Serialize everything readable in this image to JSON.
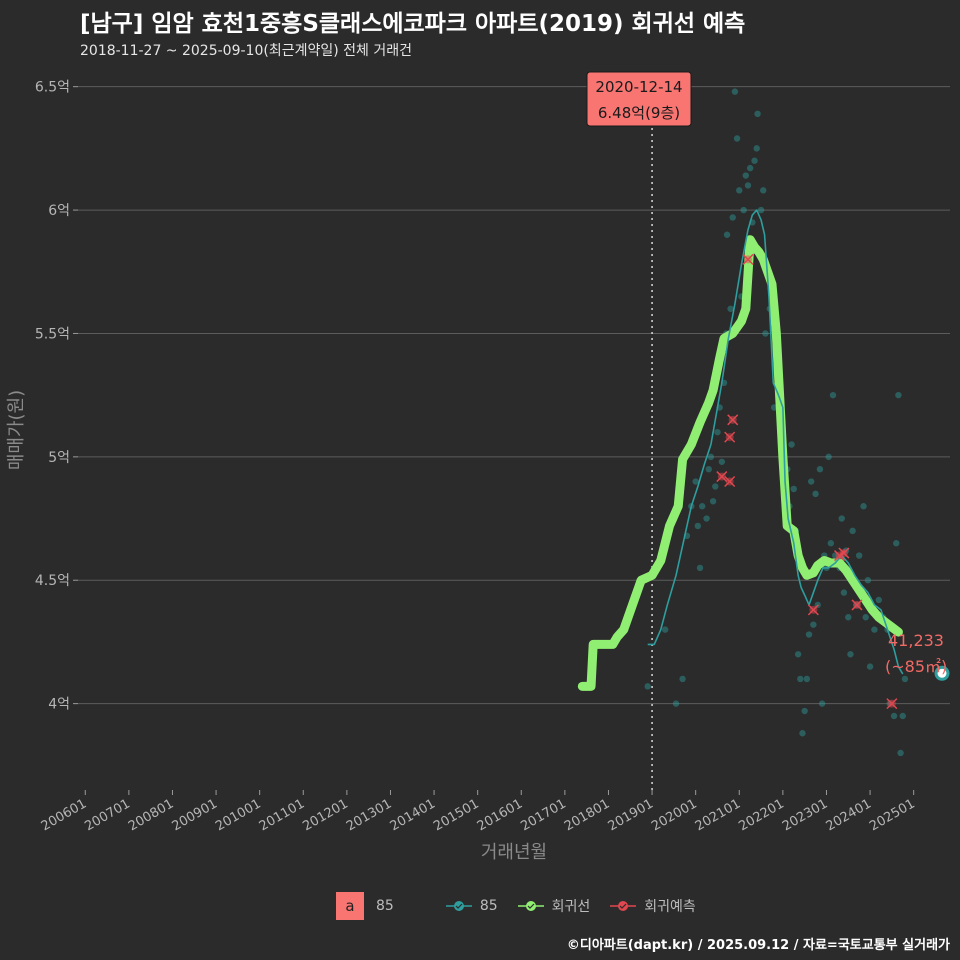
{
  "title": "[남구] 임암 효천1중흥S클래스에코파크 아파트(2019) 회귀선 예측",
  "subtitle": "2018-11-27 ~ 2025-09-10(최근계약일) 전체 거래건",
  "footer": "©디아파트(dapt.kr) / 2025.09.12 / 자료=국토교통부 실거래가",
  "colors": {
    "background": "#2b2b2b",
    "grid": "#5c5c5c",
    "area_line": "#2e9e9e",
    "regression": "#90ee72",
    "forecast": "#e0474f",
    "callout": "#f87572"
  },
  "chart_data": {
    "type": "line",
    "title": "[남구] 임암 효천1중흥S클래스에코파크 아파트(2019) 회귀선 예측",
    "xlabel": "거래년월",
    "ylabel": "매매가(원)",
    "x_range": [
      "2005-11",
      "2025-11"
    ],
    "ylim": [
      3.65,
      6.6
    ],
    "y_ticks": [
      {
        "value": 4.0,
        "label": "4억"
      },
      {
        "value": 4.5,
        "label": "4.5억"
      },
      {
        "value": 5.0,
        "label": "5억"
      },
      {
        "value": 5.5,
        "label": "5.5억"
      },
      {
        "value": 6.0,
        "label": "6억"
      },
      {
        "value": 6.5,
        "label": "6.5억"
      }
    ],
    "x_ticks": [
      "200601",
      "200701",
      "200801",
      "200901",
      "201001",
      "201101",
      "201201",
      "201301",
      "201401",
      "201501",
      "201601",
      "201701",
      "201801",
      "201901",
      "202001",
      "202101",
      "202201",
      "202301",
      "202401",
      "202501"
    ],
    "legend": {
      "area_box_label": "a",
      "area_label": "85",
      "series_area": "85",
      "series_regression": "회귀선",
      "series_forecast": "회귀예측"
    },
    "vline": {
      "x": 2019.0,
      "style": "dotted"
    },
    "callout_max": {
      "date": "2020-12-14",
      "value_text": "6.48억(9층)"
    },
    "end_label": {
      "price": "41,233",
      "area": "(~85㎡)",
      "x": 2025.65,
      "y": 4.123
    },
    "series": [
      {
        "name": "85",
        "kind": "line",
        "points": [
          [
            2018.9,
            4.24
          ],
          [
            2019.05,
            4.24
          ],
          [
            2019.2,
            4.3
          ],
          [
            2019.35,
            4.4
          ],
          [
            2019.55,
            4.52
          ],
          [
            2019.75,
            4.68
          ],
          [
            2019.9,
            4.8
          ],
          [
            2020.05,
            4.88
          ],
          [
            2020.2,
            4.97
          ],
          [
            2020.35,
            5.05
          ],
          [
            2020.5,
            5.2
          ],
          [
            2020.6,
            5.3
          ],
          [
            2020.75,
            5.48
          ],
          [
            2020.9,
            5.62
          ],
          [
            2021.05,
            5.78
          ],
          [
            2021.2,
            5.92
          ],
          [
            2021.3,
            5.98
          ],
          [
            2021.4,
            6.0
          ],
          [
            2021.5,
            5.96
          ],
          [
            2021.58,
            5.9
          ],
          [
            2021.68,
            5.65
          ],
          [
            2021.78,
            5.3
          ],
          [
            2021.9,
            5.25
          ],
          [
            2022.0,
            5.2
          ],
          [
            2022.05,
            4.9
          ],
          [
            2022.12,
            4.75
          ],
          [
            2022.25,
            4.65
          ],
          [
            2022.35,
            4.52
          ],
          [
            2022.42,
            4.47
          ],
          [
            2022.5,
            4.44
          ],
          [
            2022.6,
            4.4
          ],
          [
            2022.7,
            4.45
          ],
          [
            2022.8,
            4.5
          ],
          [
            2022.92,
            4.55
          ],
          [
            2023.05,
            4.55
          ],
          [
            2023.2,
            4.57
          ],
          [
            2023.35,
            4.6
          ],
          [
            2023.5,
            4.57
          ],
          [
            2023.65,
            4.52
          ],
          [
            2023.8,
            4.48
          ],
          [
            2023.95,
            4.45
          ],
          [
            2024.1,
            4.4
          ],
          [
            2024.25,
            4.38
          ],
          [
            2024.4,
            4.3
          ],
          [
            2024.55,
            4.22
          ],
          [
            2024.65,
            4.15
          ],
          [
            2024.75,
            4.12
          ]
        ]
      },
      {
        "name": "회귀선",
        "kind": "line",
        "points": [
          [
            2017.4,
            4.07
          ],
          [
            2017.6,
            4.07
          ],
          [
            2017.65,
            4.24
          ],
          [
            2018.1,
            4.24
          ],
          [
            2018.2,
            4.27
          ],
          [
            2018.35,
            4.3
          ],
          [
            2018.55,
            4.4
          ],
          [
            2018.75,
            4.5
          ],
          [
            2019.0,
            4.52
          ],
          [
            2019.2,
            4.58
          ],
          [
            2019.4,
            4.72
          ],
          [
            2019.6,
            4.8
          ],
          [
            2019.7,
            4.99
          ],
          [
            2019.9,
            5.05
          ],
          [
            2020.1,
            5.14
          ],
          [
            2020.3,
            5.22
          ],
          [
            2020.4,
            5.27
          ],
          [
            2020.55,
            5.4
          ],
          [
            2020.65,
            5.48
          ],
          [
            2020.85,
            5.5
          ],
          [
            2021.05,
            5.55
          ],
          [
            2021.15,
            5.6
          ],
          [
            2021.25,
            5.88
          ],
          [
            2021.35,
            5.85
          ],
          [
            2021.45,
            5.83
          ],
          [
            2021.55,
            5.8
          ],
          [
            2021.65,
            5.75
          ],
          [
            2021.75,
            5.7
          ],
          [
            2021.85,
            5.5
          ],
          [
            2022.0,
            5.0
          ],
          [
            2022.1,
            4.72
          ],
          [
            2022.25,
            4.7
          ],
          [
            2022.35,
            4.6
          ],
          [
            2022.45,
            4.55
          ],
          [
            2022.55,
            4.52
          ],
          [
            2022.7,
            4.53
          ],
          [
            2022.8,
            4.56
          ],
          [
            2022.95,
            4.58
          ],
          [
            2023.1,
            4.57
          ],
          [
            2023.3,
            4.57
          ],
          [
            2023.45,
            4.54
          ],
          [
            2023.6,
            4.5
          ],
          [
            2023.75,
            4.46
          ],
          [
            2023.9,
            4.42
          ],
          [
            2024.05,
            4.38
          ],
          [
            2024.2,
            4.35
          ],
          [
            2024.35,
            4.33
          ],
          [
            2024.5,
            4.31
          ],
          [
            2024.65,
            4.29
          ]
        ]
      },
      {
        "name": "회귀예측",
        "kind": "scatter",
        "points": [
          [
            2020.6,
            4.92
          ],
          [
            2020.78,
            4.9
          ],
          [
            2020.78,
            5.08
          ],
          [
            2020.85,
            5.15
          ],
          [
            2021.2,
            5.8
          ],
          [
            2022.7,
            4.38
          ],
          [
            2023.3,
            4.6
          ],
          [
            2023.4,
            4.61
          ],
          [
            2023.7,
            4.4
          ],
          [
            2024.5,
            4.0
          ]
        ]
      }
    ],
    "transactions": [
      [
        2018.9,
        4.07
      ],
      [
        2019.3,
        4.3
      ],
      [
        2019.55,
        4.0
      ],
      [
        2019.7,
        4.1
      ],
      [
        2019.8,
        4.68
      ],
      [
        2019.9,
        4.8
      ],
      [
        2020.0,
        4.9
      ],
      [
        2020.05,
        4.72
      ],
      [
        2020.1,
        4.55
      ],
      [
        2020.15,
        4.8
      ],
      [
        2020.25,
        4.75
      ],
      [
        2020.3,
        4.95
      ],
      [
        2020.35,
        5.0
      ],
      [
        2020.4,
        4.82
      ],
      [
        2020.45,
        4.88
      ],
      [
        2020.5,
        5.1
      ],
      [
        2020.55,
        5.2
      ],
      [
        2020.6,
        4.98
      ],
      [
        2020.65,
        5.3
      ],
      [
        2020.7,
        5.5
      ],
      [
        2020.72,
        5.9
      ],
      [
        2020.8,
        5.6
      ],
      [
        2020.85,
        5.97
      ],
      [
        2020.9,
        6.48
      ],
      [
        2020.95,
        6.29
      ],
      [
        2021.0,
        6.08
      ],
      [
        2021.05,
        5.65
      ],
      [
        2021.1,
        6.0
      ],
      [
        2021.15,
        6.14
      ],
      [
        2021.2,
        6.1
      ],
      [
        2021.25,
        6.17
      ],
      [
        2021.3,
        5.95
      ],
      [
        2021.35,
        6.2
      ],
      [
        2021.4,
        6.25
      ],
      [
        2021.42,
        6.39
      ],
      [
        2021.5,
        6.0
      ],
      [
        2021.55,
        6.08
      ],
      [
        2021.6,
        5.5
      ],
      [
        2021.7,
        5.6
      ],
      [
        2021.8,
        5.2
      ],
      [
        2021.9,
        5.25
      ],
      [
        2022.0,
        5.05
      ],
      [
        2022.05,
        4.9
      ],
      [
        2022.15,
        4.8
      ],
      [
        2022.25,
        4.87
      ],
      [
        2022.3,
        4.7
      ],
      [
        2022.35,
        4.2
      ],
      [
        2022.4,
        4.1
      ],
      [
        2022.45,
        3.88
      ],
      [
        2022.5,
        3.97
      ],
      [
        2022.55,
        4.1
      ],
      [
        2022.6,
        4.28
      ],
      [
        2022.7,
        4.32
      ],
      [
        2022.8,
        4.4
      ],
      [
        2022.9,
        4.0
      ],
      [
        2022.95,
        4.6
      ],
      [
        2023.0,
        4.55
      ],
      [
        2023.1,
        4.65
      ],
      [
        2023.2,
        4.6
      ],
      [
        2023.3,
        4.55
      ],
      [
        2023.4,
        4.45
      ],
      [
        2023.45,
        4.62
      ],
      [
        2023.5,
        4.35
      ],
      [
        2023.55,
        4.2
      ],
      [
        2023.6,
        4.5
      ],
      [
        2023.65,
        4.48
      ],
      [
        2023.7,
        4.4
      ],
      [
        2023.75,
        4.6
      ],
      [
        2023.8,
        4.44
      ],
      [
        2023.9,
        4.35
      ],
      [
        2023.95,
        4.5
      ],
      [
        2024.0,
        4.15
      ],
      [
        2024.1,
        4.3
      ],
      [
        2024.2,
        4.42
      ],
      [
        2024.3,
        4.35
      ],
      [
        2024.4,
        4.3
      ],
      [
        2024.45,
        4.0
      ],
      [
        2024.55,
        3.95
      ],
      [
        2024.6,
        4.65
      ],
      [
        2024.65,
        5.25
      ],
      [
        2024.7,
        3.8
      ],
      [
        2024.75,
        3.95
      ],
      [
        2024.8,
        4.1
      ],
      [
        2023.85,
        4.8
      ],
      [
        2023.6,
        4.7
      ],
      [
        2023.35,
        4.75
      ],
      [
        2023.15,
        5.25
      ],
      [
        2023.05,
        5.0
      ],
      [
        2022.85,
        4.95
      ],
      [
        2022.75,
        4.85
      ],
      [
        2022.65,
        4.9
      ],
      [
        2022.2,
        5.05
      ],
      [
        2022.1,
        4.95
      ]
    ]
  }
}
